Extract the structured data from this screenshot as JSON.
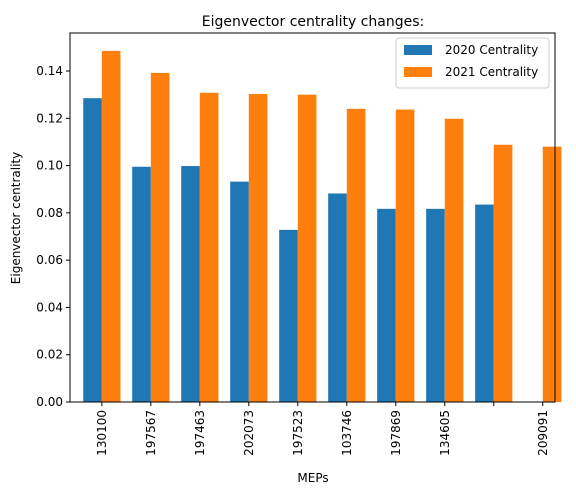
{
  "chart_data": {
    "type": "bar",
    "title": "Eigenvector centrality changes:",
    "xlabel": "MEPs",
    "ylabel": "Eigenvector centrality",
    "ylim": [
      0,
      0.155
    ],
    "yticks": [
      0.0,
      0.02,
      0.04,
      0.06,
      0.08,
      0.1,
      0.12,
      0.14
    ],
    "ytick_labels": [
      "0.00",
      "0.02",
      "0.04",
      "0.06",
      "0.08",
      "0.10",
      "0.12",
      "0.14"
    ],
    "categories": [
      "130100",
      "197567",
      "197463",
      "202073",
      "197523",
      "103746",
      "197869",
      "134605",
      "",
      "209091"
    ],
    "grid": false,
    "legend_position": "top-right",
    "series": [
      {
        "name": "2020 Centrality",
        "color": "#1f77b4",
        "values": [
          0.1285,
          0.0995,
          0.0998,
          0.0932,
          0.0728,
          0.0882,
          0.0817,
          0.0817,
          0.0835,
          null
        ]
      },
      {
        "name": "2021 Centrality",
        "color": "#ff7f0e",
        "values": [
          0.1485,
          0.1392,
          0.1308,
          0.1303,
          0.13,
          0.124,
          0.1237,
          0.1198,
          0.1088,
          0.108
        ]
      }
    ]
  }
}
